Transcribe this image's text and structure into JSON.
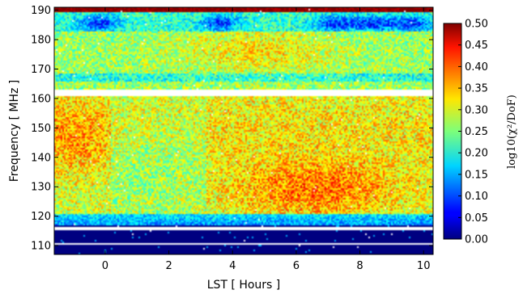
{
  "chart_data": {
    "type": "heatmap",
    "title": "",
    "xlabel": "LST [ Hours ]",
    "ylabel": "Frequency [ MHz ]",
    "xlim": [
      -1.6,
      10.3
    ],
    "ylim": [
      107,
      191
    ],
    "xticks": [
      0,
      2,
      4,
      6,
      8,
      10
    ],
    "yticks": [
      110,
      120,
      130,
      140,
      150,
      160,
      170,
      180,
      190
    ],
    "colorbar": {
      "label": "log10(χ²/DoF)",
      "range": [
        0.0,
        0.5
      ],
      "ticks": [
        "0.00",
        "0.05",
        "0.10",
        "0.15",
        "0.20",
        "0.25",
        "0.30",
        "0.35",
        "0.40",
        "0.45",
        "0.50"
      ],
      "colormap": "jet"
    },
    "flagged_bands_mhz": [
      [
        161.0,
        163.0
      ],
      [
        115.5,
        116.5
      ],
      [
        110.5,
        111.0
      ]
    ],
    "regions": [
      {
        "freq_range": [
          188,
          191
        ],
        "value": 0.48,
        "note": "top edge, saturated"
      },
      {
        "freq_range": [
          182,
          188
        ],
        "value": 0.12,
        "note": "low band"
      },
      {
        "freq_range": [
          163,
          182
        ],
        "value": 0.24
      },
      {
        "freq_range": [
          121,
          161
        ],
        "value": 0.3,
        "note": "peak near LST 5-8, 120-135 MHz"
      },
      {
        "freq_range": [
          117,
          121
        ],
        "value": 0.12
      },
      {
        "freq_range": [
          107,
          116
        ],
        "value": 0.0,
        "note": "very low"
      }
    ]
  }
}
